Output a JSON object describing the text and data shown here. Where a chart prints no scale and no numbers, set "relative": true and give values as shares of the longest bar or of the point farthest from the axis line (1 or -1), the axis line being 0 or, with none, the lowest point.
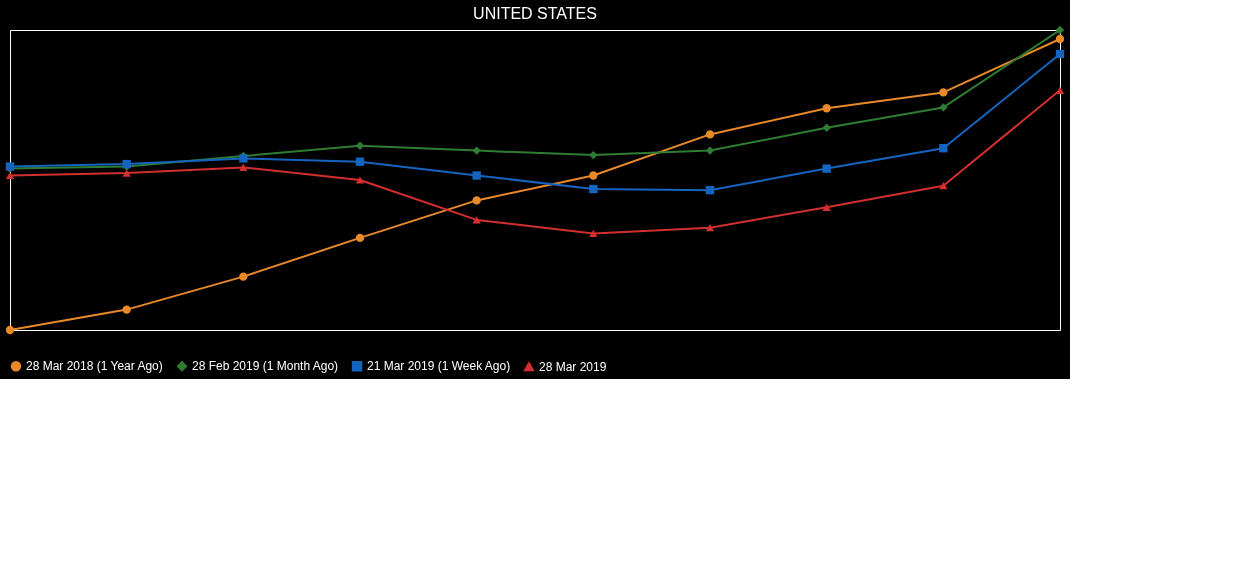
{
  "chart_data": {
    "type": "line",
    "title": "UNITED STATES",
    "relative": true,
    "categories": [
      null,
      null,
      null,
      null,
      null,
      null,
      null,
      null,
      null,
      null
    ],
    "series": [
      {
        "name": "28 Mar 2018 (1 Year Ago)",
        "color": "#e8892a",
        "marker": "circle",
        "values": [
          0,
          0.068,
          0.178,
          0.307,
          0.432,
          0.515,
          0.652,
          0.739,
          0.792,
          0.97
        ]
      },
      {
        "name": "28 Feb 2019 (1 Month Ago)",
        "color": "#2e7d32",
        "marker": "diamond",
        "values": [
          0.538,
          0.545,
          0.58,
          0.614,
          0.598,
          0.583,
          0.598,
          0.674,
          0.742,
          1
        ]
      },
      {
        "name": "21 Mar 2019 (1 Week Ago)",
        "color": "#1565c0",
        "marker": "square",
        "values": [
          0.545,
          0.553,
          0.572,
          0.561,
          0.515,
          0.47,
          0.466,
          0.538,
          0.606,
          0.92
        ]
      },
      {
        "name": "28 Mar 2019",
        "color": "#d32f2f",
        "marker": "triangle",
        "values": [
          0.515,
          0.523,
          0.542,
          0.5,
          0.367,
          0.322,
          0.341,
          0.409,
          0.481,
          0.799
        ]
      }
    ],
    "legend": "bottom",
    "line_style": "solid"
  }
}
